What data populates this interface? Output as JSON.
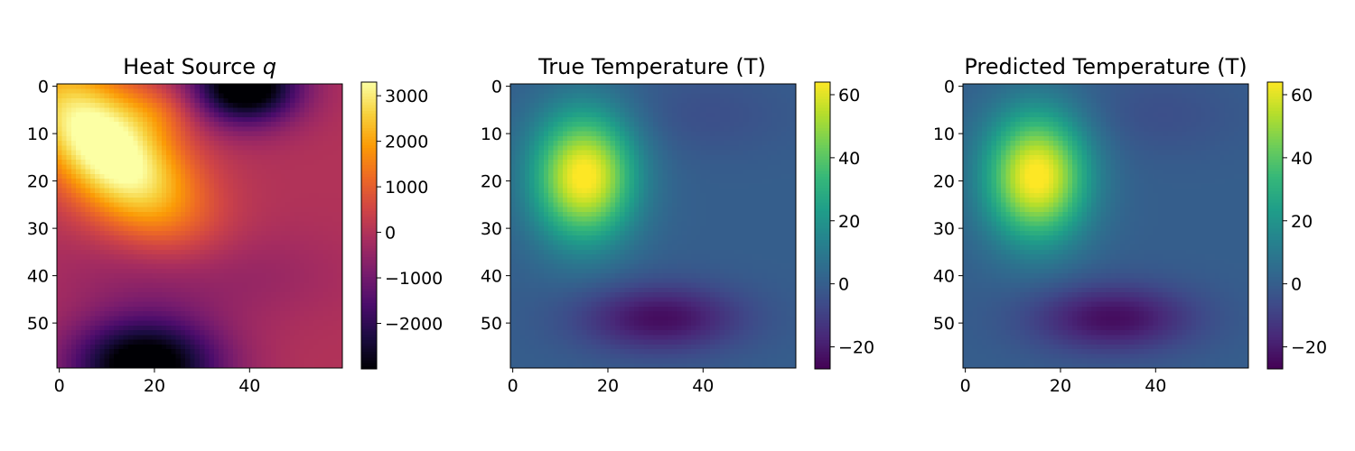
{
  "chart_data": [
    {
      "type": "heatmap",
      "title": "Heat Source",
      "title_symbol": "q",
      "colormap": "inferno",
      "grid_size": [
        60,
        60
      ],
      "xticks": [
        0,
        20,
        40
      ],
      "yticks": [
        0,
        10,
        20,
        30,
        40,
        50
      ],
      "xlim": [
        -0.5,
        59.5
      ],
      "ylim": [
        59.5,
        -0.5
      ],
      "colorbar": {
        "ticks": [
          3000,
          2000,
          1000,
          0,
          -1000,
          -2000
        ],
        "range": [
          -3000,
          3300
        ]
      },
      "features": [
        {
          "label": "hot-spot",
          "x": 10,
          "y": 13,
          "value": 3200
        },
        {
          "label": "cold-spot",
          "x": 38,
          "y": 1,
          "value": -2800
        },
        {
          "label": "cold-spot",
          "x": 19,
          "y": 57,
          "value": -2900
        }
      ]
    },
    {
      "type": "heatmap",
      "title": "True Temperature (T)",
      "colormap": "viridis",
      "grid_size": [
        60,
        60
      ],
      "xticks": [
        0,
        20,
        40
      ],
      "yticks": [
        0,
        10,
        20,
        30,
        40,
        50
      ],
      "xlim": [
        -0.5,
        59.5
      ],
      "ylim": [
        59.5,
        -0.5
      ],
      "colorbar": {
        "ticks": [
          60,
          40,
          20,
          0,
          -20
        ],
        "range": [
          -27,
          64
        ]
      },
      "features": [
        {
          "label": "peak",
          "x": 15,
          "y": 19,
          "value": 63
        },
        {
          "label": "trough",
          "x": 30,
          "y": 49,
          "value": -26
        }
      ]
    },
    {
      "type": "heatmap",
      "title": "Predicted Temperature (T)",
      "colormap": "viridis",
      "grid_size": [
        60,
        60
      ],
      "xticks": [
        0,
        20,
        40
      ],
      "yticks": [
        0,
        10,
        20,
        30,
        40,
        50
      ],
      "xlim": [
        -0.5,
        59.5
      ],
      "ylim": [
        59.5,
        -0.5
      ],
      "colorbar": {
        "ticks": [
          60,
          40,
          20,
          0,
          -20
        ],
        "range": [
          -27,
          64
        ]
      },
      "features": [
        {
          "label": "peak",
          "x": 15,
          "y": 19,
          "value": 63
        },
        {
          "label": "trough",
          "x": 30,
          "y": 49,
          "value": -26
        }
      ]
    }
  ]
}
